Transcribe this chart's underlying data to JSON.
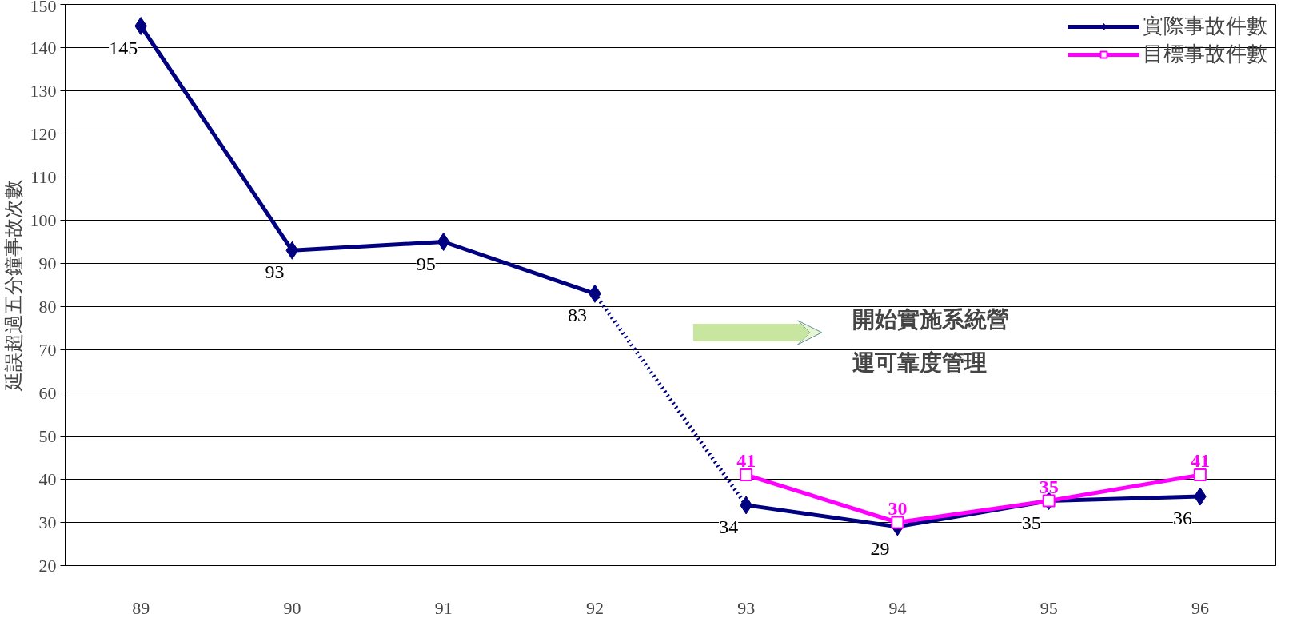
{
  "chart_data": {
    "type": "line",
    "ylabel": "延誤超過五分鐘事故次數",
    "categories": [
      "89",
      "90",
      "91",
      "92",
      "93",
      "94",
      "95",
      "96"
    ],
    "ylim": [
      20,
      150
    ],
    "yticks": [
      20,
      30,
      40,
      50,
      60,
      70,
      80,
      90,
      100,
      110,
      120,
      130,
      140,
      150
    ],
    "grid": "y",
    "legend": "top right",
    "data_labels": true,
    "annotations": [
      "開始實施系統營運可靠度管理"
    ],
    "series": [
      {
        "name": "實際事故件數",
        "color": "#000080",
        "marker": "diamond",
        "values": [
          145,
          93,
          95,
          83,
          null,
          null,
          null,
          null
        ]
      },
      {
        "color": "#000080",
        "marker": "diamond",
        "values": [
          null,
          null,
          null,
          null,
          34,
          29,
          35,
          36
        ]
      },
      {
        "color": "#000080",
        "marker": "none",
        "line_style": "dotted",
        "value_labels": [
          null,
          null,
          null,
          null,
          null,
          null,
          null,
          null
        ],
        "values": [
          null,
          null,
          null,
          83,
          34,
          null,
          null,
          null
        ]
      },
      {
        "name": "目標事故件數",
        "color": "#ff00ff",
        "marker": "square",
        "values": [
          null,
          null,
          null,
          null,
          41,
          30,
          35,
          41
        ]
      }
    ]
  }
}
